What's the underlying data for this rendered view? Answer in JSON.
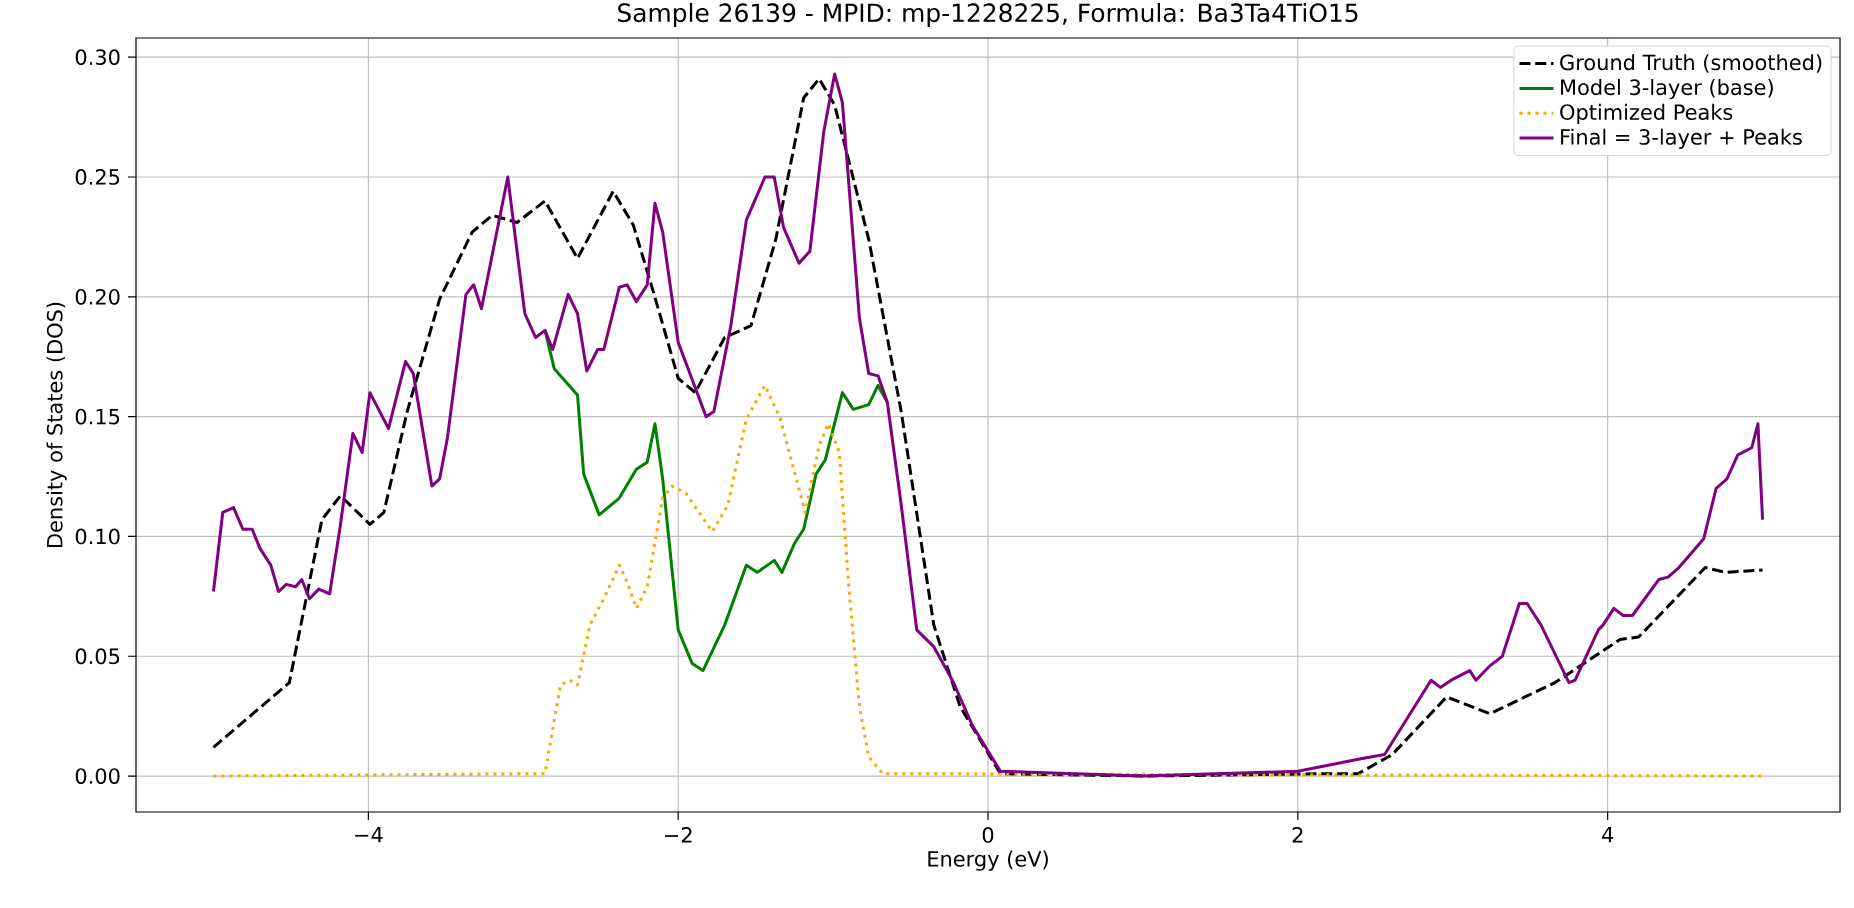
{
  "chart_data": {
    "type": "line",
    "title": "Sample 26139 - MPID: mp-1228225, Formula: Ba3Ta4TiO15",
    "xlabel": "Energy (eV)",
    "ylabel": "Density of States (DOS)",
    "xlim": [
      -5.5,
      5.5
    ],
    "ylim": [
      -0.015,
      0.308
    ],
    "xticks": [
      {
        "value": -4,
        "label": "−4"
      },
      {
        "value": -2,
        "label": "−2"
      },
      0,
      2,
      4
    ],
    "yticks": [
      {
        "value": 0,
        "label": "0.00"
      },
      {
        "value": 0.05,
        "label": "0.05"
      },
      {
        "value": 0.1,
        "label": "0.10"
      },
      {
        "value": 0.15,
        "label": "0.15"
      },
      {
        "value": 0.2,
        "label": "0.20"
      },
      {
        "value": 0.25,
        "label": "0.25"
      },
      {
        "value": 0.3,
        "label": "0.30"
      }
    ],
    "grid": true,
    "legend": "top right",
    "marker": "none",
    "series": [
      {
        "name": "Ground Truth (smoothed)",
        "color": "#000000",
        "line_style": "dashed",
        "x": [
          -5.0,
          -4.51,
          -4.3,
          -4.18,
          -3.99,
          -3.9,
          -3.75,
          -3.54,
          -3.33,
          -3.2,
          -3.04,
          -2.86,
          -2.72,
          -2.65,
          -2.42,
          -2.29,
          -2.16,
          -2.0,
          -1.89,
          -1.7,
          -1.53,
          -1.37,
          -1.19,
          -1.09,
          -0.99,
          -0.77,
          -0.56,
          -0.35,
          -0.18,
          0.08,
          1.0,
          2.2,
          2.39,
          2.61,
          2.96,
          3.24,
          3.66,
          4.08,
          4.2,
          4.63,
          4.76,
          5.0
        ],
        "values": [
          0.012,
          0.039,
          0.107,
          0.117,
          0.105,
          0.11,
          0.152,
          0.199,
          0.227,
          0.234,
          0.231,
          0.24,
          0.224,
          0.216,
          0.244,
          0.23,
          0.202,
          0.166,
          0.16,
          0.183,
          0.188,
          0.224,
          0.283,
          0.291,
          0.28,
          0.224,
          0.152,
          0.063,
          0.029,
          0.001,
          0.0,
          0.001,
          0.001,
          0.009,
          0.033,
          0.026,
          0.039,
          0.057,
          0.058,
          0.087,
          0.085,
          0.086
        ]
      },
      {
        "name": "Model 3-layer (base)",
        "color": "#008000",
        "line_style": "solid",
        "x": [
          -2.86,
          -2.8,
          -2.65,
          -2.61,
          -2.51,
          -2.38,
          -2.27,
          -2.2,
          -2.15,
          -2.1,
          -2.0,
          -1.91,
          -1.84,
          -1.7,
          -1.56,
          -1.49,
          -1.38,
          -1.33,
          -1.25,
          -1.19,
          -1.11,
          -1.05,
          -0.94,
          -0.87,
          -0.77,
          -0.71,
          -0.65
        ],
        "values": [
          0.186,
          0.17,
          0.159,
          0.126,
          0.109,
          0.116,
          0.128,
          0.131,
          0.147,
          0.124,
          0.061,
          0.047,
          0.044,
          0.063,
          0.088,
          0.085,
          0.09,
          0.085,
          0.097,
          0.103,
          0.126,
          0.132,
          0.16,
          0.153,
          0.155,
          0.163,
          0.156
        ]
      },
      {
        "name": "Optimized Peaks",
        "color": "#ffa500",
        "line_style": "dotted",
        "x": [
          -5.0,
          -2.86,
          -2.76,
          -2.7,
          -2.65,
          -2.57,
          -2.48,
          -2.38,
          -2.33,
          -2.27,
          -2.2,
          -2.1,
          -2.04,
          -1.95,
          -1.78,
          -1.68,
          -1.56,
          -1.44,
          -1.34,
          -1.18,
          -1.09,
          -1.03,
          -0.96,
          -0.9,
          -0.83,
          -0.77,
          -0.68,
          5.0
        ],
        "values": [
          0.0,
          0.001,
          0.038,
          0.04,
          0.038,
          0.063,
          0.074,
          0.088,
          0.081,
          0.07,
          0.079,
          0.116,
          0.121,
          0.118,
          0.102,
          0.113,
          0.149,
          0.163,
          0.149,
          0.11,
          0.138,
          0.147,
          0.135,
          0.08,
          0.029,
          0.008,
          0.001,
          0.0
        ]
      },
      {
        "name": "Final = 3-layer + Peaks",
        "color": "#800080",
        "line_style": "solid",
        "x": [
          -5.0,
          -4.94,
          -4.87,
          -4.81,
          -4.75,
          -4.7,
          -4.63,
          -4.58,
          -4.53,
          -4.47,
          -4.43,
          -4.38,
          -4.32,
          -4.25,
          -4.18,
          -4.1,
          -4.04,
          -3.99,
          -3.87,
          -3.76,
          -3.71,
          -3.59,
          -3.54,
          -3.49,
          -3.37,
          -3.32,
          -3.27,
          -3.1,
          -2.99,
          -2.92,
          -2.86,
          -2.81,
          -2.71,
          -2.65,
          -2.59,
          -2.52,
          -2.48,
          -2.38,
          -2.33,
          -2.27,
          -2.2,
          -2.15,
          -2.1,
          -2.0,
          -1.82,
          -1.77,
          -1.66,
          -1.56,
          -1.44,
          -1.38,
          -1.32,
          -1.22,
          -1.15,
          -1.06,
          -0.99,
          -0.94,
          -0.83,
          -0.77,
          -0.71,
          -0.65,
          -0.56,
          -0.46,
          -0.35,
          -0.23,
          -0.1,
          0.08,
          1.0,
          2.0,
          2.39,
          2.56,
          2.86,
          2.92,
          2.99,
          3.11,
          3.15,
          3.24,
          3.32,
          3.43,
          3.48,
          3.57,
          3.75,
          3.79,
          3.94,
          3.97,
          4.04,
          4.1,
          4.16,
          4.33,
          4.39,
          4.46,
          4.62,
          4.7,
          4.77,
          4.84,
          4.93,
          4.97,
          5.0
        ],
        "values": [
          0.077,
          0.11,
          0.112,
          0.103,
          0.103,
          0.095,
          0.088,
          0.077,
          0.08,
          0.079,
          0.082,
          0.074,
          0.078,
          0.076,
          0.105,
          0.143,
          0.135,
          0.16,
          0.145,
          0.173,
          0.168,
          0.121,
          0.124,
          0.141,
          0.201,
          0.205,
          0.195,
          0.25,
          0.193,
          0.183,
          0.186,
          0.178,
          0.201,
          0.193,
          0.169,
          0.178,
          0.178,
          0.204,
          0.205,
          0.198,
          0.205,
          0.239,
          0.227,
          0.181,
          0.15,
          0.152,
          0.188,
          0.232,
          0.25,
          0.25,
          0.229,
          0.214,
          0.219,
          0.269,
          0.293,
          0.281,
          0.191,
          0.168,
          0.167,
          0.156,
          0.113,
          0.061,
          0.054,
          0.04,
          0.021,
          0.002,
          0.0,
          0.002,
          0.007,
          0.009,
          0.04,
          0.037,
          0.04,
          0.044,
          0.04,
          0.046,
          0.05,
          0.072,
          0.072,
          0.063,
          0.039,
          0.04,
          0.061,
          0.063,
          0.07,
          0.067,
          0.067,
          0.082,
          0.083,
          0.087,
          0.099,
          0.12,
          0.124,
          0.134,
          0.137,
          0.147,
          0.107
        ]
      }
    ]
  }
}
